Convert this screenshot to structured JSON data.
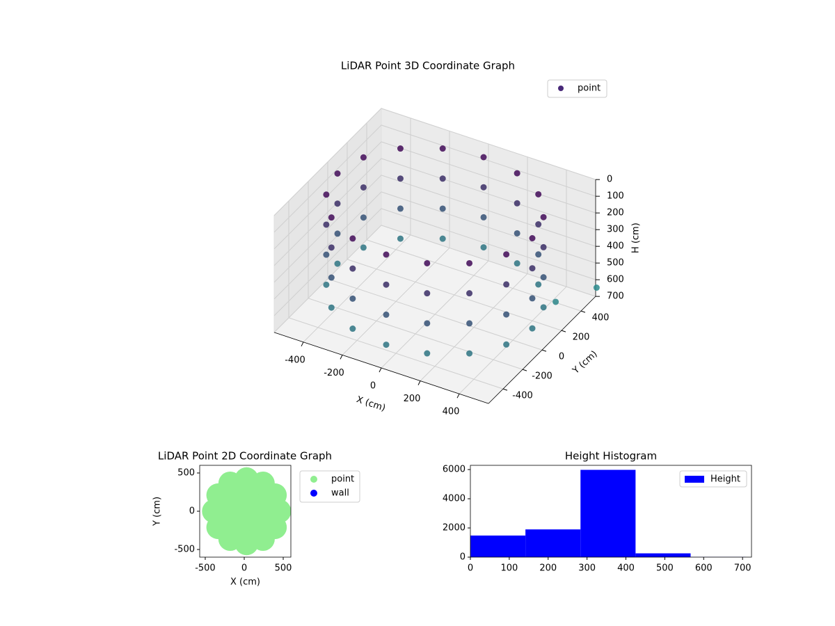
{
  "chart_data": [
    {
      "type": "scatter3d",
      "title": "LiDAR Point 3D Coordinate Graph",
      "x_label": "X (cm)",
      "y_label": "Y (cm)",
      "z_label": "H (cm)",
      "xlim": [
        -550,
        550
      ],
      "ylim": [
        -550,
        550
      ],
      "zlim": [
        0,
        700
      ],
      "z_inverted": true,
      "xticks": [
        -400,
        -200,
        0,
        200,
        400
      ],
      "yticks": [
        -400,
        -200,
        0,
        200,
        400
      ],
      "zticks": [
        0,
        100,
        200,
        300,
        400,
        500,
        600,
        700
      ],
      "colormap": [
        "#440154",
        "#2a8a8c"
      ],
      "grid": true,
      "series": [
        {
          "name": "point",
          "color": "#482878",
          "x": [
            500,
            462,
            354,
            191,
            0,
            -191,
            -354,
            -462,
            -500,
            -462,
            -354,
            -191,
            0,
            191,
            354,
            462,
            500,
            462,
            354,
            191,
            0,
            -191,
            -354,
            -462,
            -500,
            -462,
            -354,
            -191,
            0,
            191,
            354,
            462,
            500,
            462,
            354,
            191,
            0,
            -191,
            -354,
            -462,
            -500,
            -462,
            -354,
            -191,
            0,
            191,
            354,
            462,
            500,
            462,
            354,
            191,
            0,
            -191,
            -354,
            -462,
            -500,
            -462,
            -354,
            -191,
            0,
            191,
            354,
            462,
            430,
            520
          ],
          "y": [
            0,
            191,
            354,
            462,
            500,
            462,
            354,
            191,
            0,
            -191,
            -354,
            -462,
            -500,
            -462,
            -354,
            -191,
            0,
            191,
            354,
            462,
            500,
            462,
            354,
            191,
            0,
            -191,
            -354,
            -462,
            -500,
            -462,
            -354,
            -191,
            0,
            191,
            354,
            462,
            500,
            462,
            354,
            191,
            0,
            -191,
            -354,
            -462,
            -500,
            -462,
            -354,
            -191,
            0,
            191,
            354,
            462,
            500,
            462,
            354,
            191,
            0,
            -191,
            -354,
            -462,
            -500,
            -462,
            -354,
            -191,
            380,
            620
          ],
          "z": [
            50,
            50,
            50,
            50,
            50,
            50,
            50,
            50,
            50,
            50,
            50,
            50,
            50,
            50,
            50,
            50,
            230,
            230,
            230,
            230,
            230,
            230,
            230,
            230,
            230,
            230,
            230,
            230,
            230,
            230,
            230,
            230,
            410,
            410,
            410,
            410,
            410,
            410,
            410,
            410,
            410,
            410,
            410,
            410,
            410,
            410,
            410,
            410,
            590,
            590,
            590,
            590,
            590,
            590,
            590,
            590,
            590,
            590,
            590,
            590,
            590,
            590,
            590,
            590,
            680,
            700
          ]
        }
      ]
    },
    {
      "type": "scatter",
      "title": "LiDAR Point 2D Coordinate Graph",
      "x_label": "X (cm)",
      "y_label": "Y (cm)",
      "xlim": [
        -571,
        598
      ],
      "ylim": [
        -600,
        600
      ],
      "xticks": [
        -500,
        0,
        500
      ],
      "yticks": [
        -500,
        0,
        500
      ],
      "series": [
        {
          "name": "point",
          "color": "#90ee90",
          "x": [
            30,
            230,
            171,
            30,
            -111,
            -170,
            -111,
            30,
            171,
            450,
            394,
            240,
            30,
            -180,
            -334,
            -390,
            -334,
            -180,
            30,
            240,
            394
          ],
          "y": [
            0,
            0,
            141,
            200,
            141,
            0,
            -141,
            -200,
            -141,
            0,
            210,
            364,
            420,
            364,
            210,
            0,
            -210,
            -364,
            -420,
            -364,
            -210
          ]
        },
        {
          "name": "wall",
          "color": "#0000ff",
          "x": [],
          "y": []
        }
      ]
    },
    {
      "type": "histogram",
      "title": "Height Histogram",
      "bins": [
        0,
        141.6,
        283.2,
        424.8,
        566.4,
        708
      ],
      "values": [
        1480,
        1900,
        5980,
        260,
        10
      ],
      "xlim": [
        0,
        723
      ],
      "ylim": [
        0,
        6290
      ],
      "xticks": [
        0,
        100,
        200,
        300,
        400,
        500,
        600,
        700
      ],
      "yticks": [
        0,
        2000,
        4000,
        6000
      ],
      "series_name": "Height",
      "color": "#0000ff"
    }
  ]
}
